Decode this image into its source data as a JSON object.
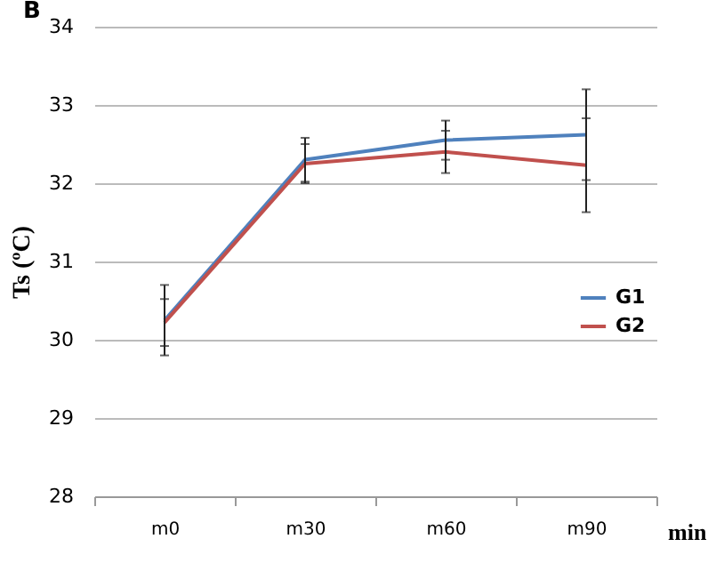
{
  "chart_data": {
    "type": "line",
    "title": "B",
    "xlabel": "min",
    "ylabel": "Ts (ºC)",
    "categories": [
      "m0",
      "m30",
      "m60",
      "m90"
    ],
    "series": [
      {
        "name": "G1",
        "color": "#4f81bd",
        "values": [
          30.25,
          32.3,
          32.55,
          32.62
        ],
        "errors": [
          0.45,
          0.28,
          0.25,
          0.58
        ]
      },
      {
        "name": "G2",
        "color": "#c0504d",
        "values": [
          30.22,
          32.25,
          32.4,
          32.23
        ],
        "errors": [
          0.3,
          0.25,
          0.27,
          0.6
        ]
      }
    ],
    "ylim": [
      28,
      34
    ],
    "yticks": [
      28,
      29,
      30,
      31,
      32,
      33,
      34
    ],
    "grid": "y",
    "legend": "right",
    "marker": "none",
    "line_style": "solid"
  }
}
